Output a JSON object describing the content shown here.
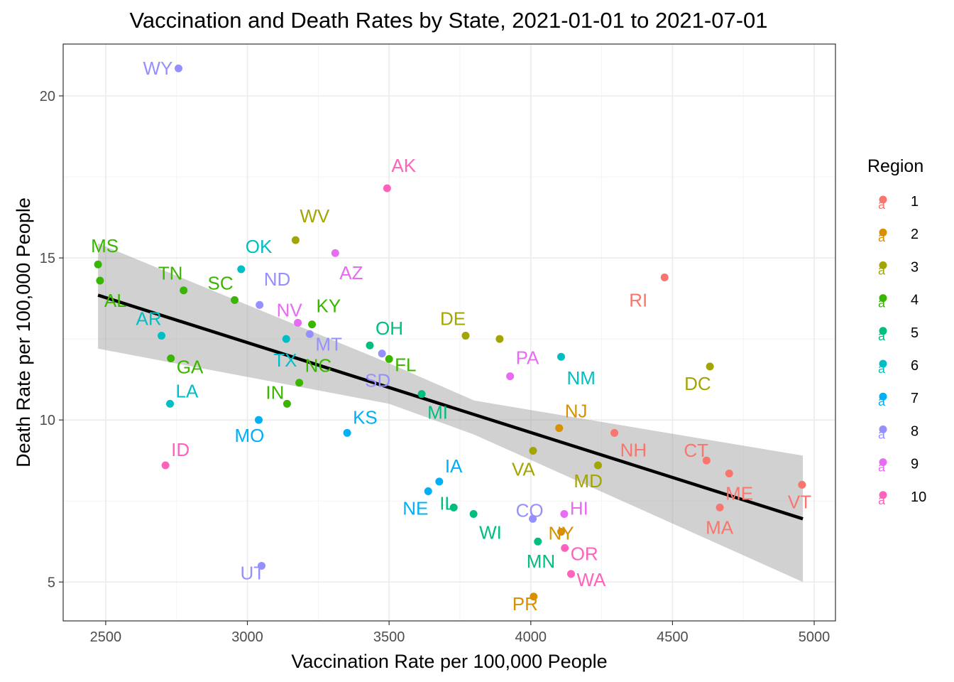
{
  "chart_data": {
    "type": "scatter",
    "title": "Vaccination and Death Rates by State, 2021-01-01 to 2021-07-01",
    "xlabel": "Vaccination Rate per 100,000 People",
    "ylabel": "Death Rate per 100,000 People",
    "xlim": [
      2350,
      5075
    ],
    "ylim": [
      3.8,
      21.6
    ],
    "xticks": [
      2500,
      3000,
      3500,
      4000,
      4500,
      5000
    ],
    "yticks": [
      5,
      10,
      15,
      20
    ],
    "grid": true,
    "legend": {
      "title": "Region",
      "position": "right",
      "items": [
        {
          "label": "1",
          "color": "#F8766D"
        },
        {
          "label": "2",
          "color": "#D89000"
        },
        {
          "label": "3",
          "color": "#A3A500"
        },
        {
          "label": "4",
          "color": "#39B600"
        },
        {
          "label": "5",
          "color": "#00BF7D"
        },
        {
          "label": "6",
          "color": "#00BFC4"
        },
        {
          "label": "7",
          "color": "#00B0F6"
        },
        {
          "label": "8",
          "color": "#9590FF"
        },
        {
          "label": "9",
          "color": "#E76BF3"
        },
        {
          "label": "10",
          "color": "#FF62BC"
        }
      ]
    },
    "points": [
      {
        "state": "WY",
        "x": 2757,
        "y": 20.85,
        "region": "8",
        "label_dx": -2.5,
        "label_dy": 0
      },
      {
        "state": "AK",
        "x": 3493,
        "y": 17.15,
        "region": "10",
        "label_dx": 0.3,
        "label_dy": -1.6
      },
      {
        "state": "WV",
        "x": 3170,
        "y": 15.55,
        "region": "3",
        "label_dx": 0.3,
        "label_dy": -1.7
      },
      {
        "state": "AZ",
        "x": 3310,
        "y": 15.15,
        "region": "9",
        "label_dx": 0.3,
        "label_dy": 1.4
      },
      {
        "state": "MS",
        "x": 2473,
        "y": 14.8,
        "region": "4",
        "label_dx": -0.5,
        "label_dy": -1.3
      },
      {
        "state": "OK",
        "x": 2978,
        "y": 14.65,
        "region": "6",
        "label_dx": 0.3,
        "label_dy": -1.6
      },
      {
        "state": "RI",
        "x": 4472,
        "y": 14.4,
        "region": "1",
        "label_dx": -2.5,
        "label_dy": 1.6
      },
      {
        "state": "AL",
        "x": 2480,
        "y": 14.3,
        "region": "4",
        "label_dx": 0.3,
        "label_dy": 1.4
      },
      {
        "state": "TN",
        "x": 2775,
        "y": 14.0,
        "region": "4",
        "label_dx": -1.8,
        "label_dy": -1.2
      },
      {
        "state": "SC",
        "x": 2955,
        "y": 13.7,
        "region": "4",
        "label_dx": -1.9,
        "label_dy": -1.2
      },
      {
        "state": "ND",
        "x": 3043,
        "y": 13.55,
        "region": "8",
        "label_dx": 0.3,
        "label_dy": -1.8
      },
      {
        "state": "NV",
        "x": 3178,
        "y": 13.0,
        "region": "9",
        "label_dx": -1.5,
        "label_dy": -0.9
      },
      {
        "state": "KY",
        "x": 3228,
        "y": 12.95,
        "region": "4",
        "label_dx": 0.3,
        "label_dy": -1.3
      },
      {
        "state": "MT",
        "x": 3220,
        "y": 12.65,
        "region": "8",
        "label_dx": 0.4,
        "label_dy": 0.7
      },
      {
        "state": "DE",
        "x": 3770,
        "y": 12.6,
        "region": "3",
        "label_dx": -1.8,
        "label_dy": -1.2
      },
      {
        "state": "AR",
        "x": 2697,
        "y": 12.6,
        "region": "6",
        "label_dx": -1.8,
        "label_dy": -1.2
      },
      {
        "state": "TX",
        "x": 3137,
        "y": 12.5,
        "region": "6",
        "label_dx": -0.9,
        "label_dy": 1.5
      },
      {
        "state": "NY",
        "x": 3890,
        "y": 12.5,
        "region": "3",
        "label_dx": 0,
        "label_dy": 0,
        "hide_label": true
      },
      {
        "state": "OH",
        "x": 3432,
        "y": 12.3,
        "region": "5",
        "label_dx": 0.4,
        "label_dy": -1.2
      },
      {
        "state": "SD",
        "x": 3475,
        "y": 12.05,
        "region": "8",
        "label_dx": -1.2,
        "label_dy": 1.9
      },
      {
        "state": "NM",
        "x": 4107,
        "y": 11.95,
        "region": "6",
        "label_dx": 0.4,
        "label_dy": 1.5
      },
      {
        "state": "GA",
        "x": 2730,
        "y": 11.9,
        "region": "4",
        "label_dx": 0.4,
        "label_dy": 0.6
      },
      {
        "state": "FL",
        "x": 3500,
        "y": 11.88,
        "region": "4",
        "label_dx": 0.4,
        "label_dy": 0.4
      },
      {
        "state": "DC",
        "x": 4632,
        "y": 11.65,
        "region": "3",
        "label_dx": -1.8,
        "label_dy": 1.2
      },
      {
        "state": "PA",
        "x": 3927,
        "y": 11.35,
        "region": "9",
        "label_dx": 0.4,
        "label_dy": -1.3
      },
      {
        "state": "NC",
        "x": 3183,
        "y": 11.15,
        "region": "4",
        "label_dx": 0.4,
        "label_dy": -1.2
      },
      {
        "state": "MI",
        "x": 3615,
        "y": 10.8,
        "region": "5",
        "label_dx": 0.4,
        "label_dy": 1.3
      },
      {
        "state": "IN",
        "x": 3140,
        "y": 10.5,
        "region": "4",
        "label_dx": -1.5,
        "label_dy": -0.8
      },
      {
        "state": "LA",
        "x": 2727,
        "y": 10.5,
        "region": "6",
        "label_dx": 0.4,
        "label_dy": -0.9
      },
      {
        "state": "MO",
        "x": 3040,
        "y": 10.0,
        "region": "7",
        "label_dx": -1.7,
        "label_dy": 1.1
      },
      {
        "state": "NJ",
        "x": 4100,
        "y": 9.75,
        "region": "2",
        "label_dx": 0.4,
        "label_dy": -1.2
      },
      {
        "state": "KS",
        "x": 3352,
        "y": 9.6,
        "region": "7",
        "label_dx": 0.4,
        "label_dy": -1.1
      },
      {
        "state": "NH",
        "x": 4295,
        "y": 9.6,
        "region": "1",
        "label_dx": 0.4,
        "label_dy": 1.2
      },
      {
        "state": "VA",
        "x": 4008,
        "y": 9.05,
        "region": "3",
        "label_dx": -1.5,
        "label_dy": 1.3
      },
      {
        "state": "CT",
        "x": 4620,
        "y": 8.75,
        "region": "1",
        "label_dx": -1.6,
        "label_dy": -0.7
      },
      {
        "state": "ID",
        "x": 2711,
        "y": 8.6,
        "region": "10",
        "label_dx": 0.4,
        "label_dy": -1.1
      },
      {
        "state": "MD",
        "x": 4237,
        "y": 8.6,
        "region": "3",
        "label_dx": -1.7,
        "label_dy": 1.1
      },
      {
        "state": "ME_pt",
        "x": 4700,
        "y": 8.35,
        "region": "1",
        "label_dx": 0,
        "label_dy": 0,
        "hide_label": true
      },
      {
        "state": "IA",
        "x": 3677,
        "y": 8.1,
        "region": "7",
        "label_dx": 0.4,
        "label_dy": -1.1
      },
      {
        "state": "VT",
        "x": 4957,
        "y": 8.0,
        "region": "1",
        "label_dx": -1.0,
        "label_dy": 1.2
      },
      {
        "state": "ME",
        "x": 4667,
        "y": 7.3,
        "region": "1",
        "label_dx": 0.4,
        "label_dy": -1.0
      },
      {
        "state": "MA",
        "x": 4667,
        "y": 7.3,
        "region": "1",
        "label_dx": -1.0,
        "label_dy": 1.4,
        "hide_point": true
      },
      {
        "state": "NE",
        "x": 3638,
        "y": 7.8,
        "region": "7",
        "label_dx": -1.8,
        "label_dy": 1.2
      },
      {
        "state": "IL",
        "x": 3728,
        "y": 7.3,
        "region": "5",
        "label_dx": -1.0,
        "label_dy": -0.3
      },
      {
        "state": "WI",
        "x": 3798,
        "y": 7.1,
        "region": "5",
        "label_dx": 0.4,
        "label_dy": 1.3
      },
      {
        "state": "HI",
        "x": 4118,
        "y": 7.1,
        "region": "9",
        "label_dx": 0.4,
        "label_dy": -0.4
      },
      {
        "state": "CO",
        "x": 4007,
        "y": 6.95,
        "region": "8",
        "label_dx": -1.2,
        "label_dy": -0.6
      },
      {
        "state": "NY2",
        "x": 4107,
        "y": 6.55,
        "region": "2",
        "label_dx": -0.8,
        "label_dy": 0,
        "hide_label": true
      },
      {
        "state": "NY",
        "x": 4107,
        "y": 6.55,
        "region": "2",
        "label_dx": -0.9,
        "label_dy": 0.1,
        "hide_point": true
      },
      {
        "state": "MN",
        "x": 4025,
        "y": 6.25,
        "region": "5",
        "label_dx": -0.8,
        "label_dy": 1.4
      },
      {
        "state": "OR",
        "x": 4120,
        "y": 6.05,
        "region": "10",
        "label_dx": 0.4,
        "label_dy": 0.4
      },
      {
        "state": "WA",
        "x": 4142,
        "y": 5.25,
        "region": "10",
        "label_dx": 0.4,
        "label_dy": 0.4
      },
      {
        "state": "UT",
        "x": 3050,
        "y": 5.5,
        "region": "8",
        "label_dx": -1.5,
        "label_dy": 0.5
      },
      {
        "state": "PR",
        "x": 4010,
        "y": 4.55,
        "region": "2",
        "label_dx": -1.5,
        "label_dy": 0.5
      }
    ],
    "trend": {
      "x": [
        2473,
        4960
      ],
      "y": [
        13.85,
        6.95
      ]
    },
    "band": {
      "x": [
        2473,
        3500,
        3800,
        4960
      ],
      "upper": [
        15.45,
        11.75,
        10.6,
        8.9
      ],
      "lower": [
        12.2,
        10.5,
        9.55,
        5.0
      ]
    }
  }
}
